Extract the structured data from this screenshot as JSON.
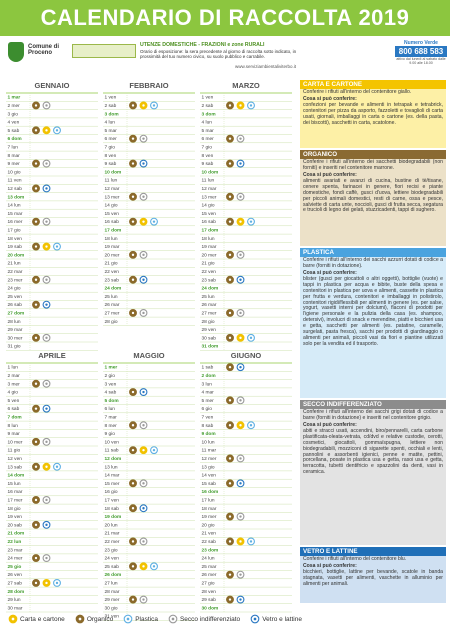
{
  "header": {
    "title": "CALENDARIO DI RACCOLTA 2019",
    "municipality": "Comune di Proceno",
    "users": "UTENZE DOMESTICHE - FRAZIONI e zone RURALI",
    "schedule": "Orario di esposizione: la sera precedente al giorno di raccolta sotto indicato, in prossimità del tuo numero civico, su suolo pubblico e carrabile.",
    "website": "www.serviziambientaliviterbo.it",
    "hotline_label": "Numero Verde",
    "hotline": "800 688 583",
    "hotline_note": "attivo dal lunedì al sabato dalle 9.00 alle 18.00"
  },
  "legend": [
    {
      "id": "c",
      "label": "Carta e cartone",
      "color": "#f2c200"
    },
    {
      "id": "o",
      "label": "Organico",
      "color": "#8b6a2b"
    },
    {
      "id": "p",
      "label": "Plastica",
      "color": "#5fb0e3"
    },
    {
      "id": "s",
      "label": "Secco indifferenziato",
      "color": "#9a9a9a"
    },
    {
      "id": "v",
      "label": "Vetro e lattine",
      "color": "#2a78c2"
    }
  ],
  "months": [
    {
      "name": "GENNAIO",
      "days": [
        "1 mar",
        "2 mer",
        "3 gio",
        "4 ven",
        "5 sab",
        "6 dom",
        "7 lun",
        "8 mar",
        "9 mer",
        "10 gio",
        "11 ven",
        "12 sab",
        "13 dom",
        "14 lun",
        "15 mar",
        "16 mer",
        "17 gio",
        "18 ven",
        "19 sab",
        "20 dom",
        "21 lun",
        "22 mar",
        "23 mer",
        "24 gio",
        "25 ven",
        "26 sab",
        "27 dom",
        "28 lun",
        "29 mar",
        "30 mer",
        "31 gio"
      ],
      "holidays": [
        1,
        6,
        13,
        20,
        27
      ],
      "pickups": {
        "2": [
          "o",
          "s"
        ],
        "5": [
          "o",
          "c",
          "p"
        ],
        "9": [
          "o",
          "s"
        ],
        "12": [
          "o",
          "v"
        ],
        "16": [
          "o",
          "s"
        ],
        "19": [
          "o",
          "c",
          "p"
        ],
        "23": [
          "o",
          "s"
        ],
        "26": [
          "o",
          "v"
        ],
        "30": [
          "o",
          "s"
        ]
      }
    },
    {
      "name": "FEBBRAIO",
      "days": [
        "1 ven",
        "2 sab",
        "3 dom",
        "4 lun",
        "5 mar",
        "6 mer",
        "7 gio",
        "8 ven",
        "9 sab",
        "10 dom",
        "11 lun",
        "12 mar",
        "13 mer",
        "14 gio",
        "15 ven",
        "16 sab",
        "17 dom",
        "18 lun",
        "19 mar",
        "20 mer",
        "21 gio",
        "22 ven",
        "23 sab",
        "24 dom",
        "25 lun",
        "26 mar",
        "27 mer",
        "28 gio"
      ],
      "holidays": [
        3,
        10,
        17,
        24
      ],
      "pickups": {
        "2": [
          "o",
          "c",
          "p"
        ],
        "6": [
          "o",
          "s"
        ],
        "9": [
          "o",
          "v"
        ],
        "13": [
          "o",
          "s"
        ],
        "16": [
          "o",
          "c",
          "p"
        ],
        "20": [
          "o",
          "s"
        ],
        "23": [
          "o",
          "v"
        ],
        "27": [
          "o",
          "s"
        ]
      }
    },
    {
      "name": "MARZO",
      "days": [
        "1 ven",
        "2 sab",
        "3 dom",
        "4 lun",
        "5 mar",
        "6 mer",
        "7 gio",
        "8 ven",
        "9 sab",
        "10 dom",
        "11 lun",
        "12 mar",
        "13 mer",
        "14 gio",
        "15 ven",
        "16 sab",
        "17 dom",
        "18 lun",
        "19 mar",
        "20 mer",
        "21 gio",
        "22 ven",
        "23 sab",
        "24 dom",
        "25 lun",
        "26 mar",
        "27 mer",
        "28 gio",
        "29 ven",
        "30 sab",
        "31 dom"
      ],
      "holidays": [
        3,
        10,
        17,
        24,
        31
      ],
      "pickups": {
        "2": [
          "o",
          "c",
          "p"
        ],
        "6": [
          "o",
          "s"
        ],
        "9": [
          "o",
          "v"
        ],
        "13": [
          "o",
          "s"
        ],
        "16": [
          "o",
          "c",
          "p"
        ],
        "20": [
          "o",
          "s"
        ],
        "23": [
          "o",
          "v"
        ],
        "27": [
          "o",
          "s"
        ],
        "30": [
          "o",
          "c",
          "p"
        ]
      }
    },
    {
      "name": "APRILE",
      "days": [
        "1 lun",
        "2 mar",
        "3 mer",
        "4 gio",
        "5 ven",
        "6 sab",
        "7 dom",
        "8 lun",
        "9 mar",
        "10 mer",
        "11 gio",
        "12 ven",
        "13 sab",
        "14 dom",
        "15 lun",
        "16 mar",
        "17 mer",
        "18 gio",
        "19 ven",
        "20 sab",
        "21 dom",
        "22 lun",
        "23 mar",
        "24 mer",
        "25 gio",
        "26 ven",
        "27 sab",
        "28 dom",
        "29 lun",
        "30 mar"
      ],
      "holidays": [
        7,
        14,
        21,
        22,
        25,
        28
      ],
      "pickups": {
        "3": [
          "o",
          "s"
        ],
        "6": [
          "o",
          "v"
        ],
        "10": [
          "o",
          "s"
        ],
        "13": [
          "o",
          "c",
          "p"
        ],
        "17": [
          "o",
          "s"
        ],
        "20": [
          "o",
          "v"
        ],
        "24": [
          "o",
          "s"
        ],
        "27": [
          "o",
          "c",
          "p"
        ]
      }
    },
    {
      "name": "MAGGIO",
      "days": [
        "1 mer",
        "2 gio",
        "3 ven",
        "4 sab",
        "5 dom",
        "6 lun",
        "7 mar",
        "8 mer",
        "9 gio",
        "10 ven",
        "11 sab",
        "12 dom",
        "13 lun",
        "14 mar",
        "15 mer",
        "16 gio",
        "17 ven",
        "18 sab",
        "19 dom",
        "20 lun",
        "21 mar",
        "22 mer",
        "23 gio",
        "24 ven",
        "25 sab",
        "26 dom",
        "27 lun",
        "28 mar",
        "29 mer",
        "30 gio",
        "31 ven"
      ],
      "holidays": [
        1,
        5,
        12,
        19,
        26
      ],
      "pickups": {
        "4": [
          "o",
          "v"
        ],
        "8": [
          "o",
          "s"
        ],
        "11": [
          "o",
          "c",
          "p"
        ],
        "15": [
          "o",
          "s"
        ],
        "18": [
          "o",
          "v"
        ],
        "22": [
          "o",
          "s"
        ],
        "25": [
          "o",
          "c",
          "p"
        ],
        "29": [
          "o",
          "s"
        ]
      }
    },
    {
      "name": "GIUGNO",
      "days": [
        "1 sab",
        "2 dom",
        "3 lun",
        "4 mar",
        "5 mer",
        "6 gio",
        "7 ven",
        "8 sab",
        "9 dom",
        "10 lun",
        "11 mar",
        "12 mer",
        "13 gio",
        "14 ven",
        "15 sab",
        "16 dom",
        "17 lun",
        "18 mar",
        "19 mer",
        "20 gio",
        "21 ven",
        "22 sab",
        "23 dom",
        "24 lun",
        "25 mar",
        "26 mer",
        "27 gio",
        "28 ven",
        "29 sab",
        "30 dom"
      ],
      "holidays": [
        2,
        9,
        16,
        23,
        30
      ],
      "pickups": {
        "1": [
          "o",
          "v"
        ],
        "5": [
          "o",
          "s"
        ],
        "8": [
          "o",
          "c",
          "p"
        ],
        "12": [
          "o",
          "s"
        ],
        "15": [
          "o",
          "v"
        ],
        "19": [
          "o",
          "s"
        ],
        "22": [
          "o",
          "c",
          "p"
        ],
        "26": [
          "o",
          "s"
        ],
        "29": [
          "o",
          "v"
        ]
      }
    }
  ],
  "info": [
    {
      "title": "CARTA E CARTONE",
      "intro": "Conferire i rifiuti all'interno del contenitore giallo.",
      "subtitle": "Cosa si può conferire:",
      "text": "confezioni per bevande e alimenti in tetrapak e tetrabrick, contenitori per pizza da asporto, fazzoletti e tovaglioli di carta usati, giornali, imballaggi in carta o cartone (es. della pasta, dei biscotti), sacchetti in carta, scatolone.",
      "color": "#f4c400",
      "bg": "#fdf0a6"
    },
    {
      "title": "ORGANICO",
      "intro": "Conferire i rifiuti all'interno dei sacchetti biodegradabili (non forniti) e inseriti nel contenitore marrone.",
      "subtitle": "Cosa si può conferire:",
      "text": "alimenti avariati e avanzi di cucina, bustine di tè/tisane, cenere spenta, farinacei in genere, fiori recisi e piante domestiche, fondi caffè, gusci d'uova, lettiere biodegradabili per piccoli animali domestici, resti di carne, ossa e pesce, salviette di carta unte, noccioli, gusci di frutta secca, segatura e trucioli di legno dei gelati, stuzzicadenti, tappi di sughero.",
      "color": "#8a6a32",
      "bg": "#ece1c8"
    },
    {
      "title": "PLASTICA",
      "intro": "Conferire i rifiuti all'interno dei sacchi azzurri dotati di codice a barre (forniti in dotazione).",
      "subtitle": "Cosa si può conferire:",
      "text": "blister (gusci per giocattoli o altri oggetti), bottiglie (vuote) e tappi in plastica per acqua e bibite, buste della spesa e contenitori in plastica per uova e alimenti, cassette in plastica per frutta e verdura, contenitori e imballaggi in polistirolo, contenitori rigidi/flessibili per alimenti in genere (es. per salse, yogurt, vasetti interni per dolciumi), flaconi di prodotti per l'igiene personale e la pulizia della casa (es. shampoo, detersivi), involucri di snack e merendine, piatti e bicchieri usa e getta, sacchetti per alimenti (es. patatine, caramelle, surgelati, pasta fresca), sacchi per prodotti di giardinaggio o alimenti per animali, piccoli vasi da fiori e piantine utilizzati solo per la vendita ed il trasporto.",
      "color": "#4aa3df",
      "bg": "#d6ebf8"
    },
    {
      "title": "SECCO INDIFFERENZIATO",
      "intro": "Conferire i rifiuti all'interno dei sacchi grigi dotati di codice a barre (forniti in dotazione) e inseriti nel contenitore grigio.",
      "subtitle": "Cosa si può conferire:",
      "text": "abiti e stracci usati, accendini, biro/pennarelli, carta carbone plastificata-oleata-vetrata, cd/dvd e relative custodie, cerotti, cosmetici, giocattoli, gomma/spugna, lettiere non biodegradabili, mozziconi di sigarette spenti, occhiali e lenti, pannolini e assorbenti igienici, penne e matite, pettini, porcellana, posate in plastica usa e getta, rasoi usa e getta, terracotta, tubetti dentifricio e spazzolini da denti, vasi in ceramica.",
      "color": "#8c8c8c",
      "bg": "#e3e3e3"
    },
    {
      "title": "VETRO E LATTINE",
      "intro": "Conferire i rifiuti all'interno del contenitore blu.",
      "subtitle": "Cosa si può conferire:",
      "text": "bicchieri, bottiglie, lattine per bevande, scatole in banda stagnata, vasetti per alimenti, vaschette in alluminio per alimenti per animali.",
      "color": "#1f6fb8",
      "bg": "#cfe0f2"
    }
  ]
}
